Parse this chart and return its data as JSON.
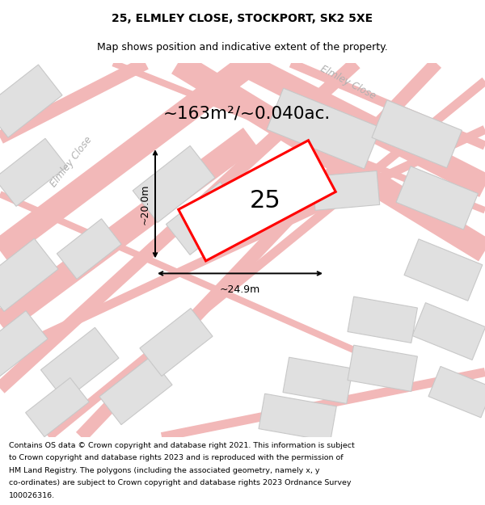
{
  "title": "25, ELMLEY CLOSE, STOCKPORT, SK2 5XE",
  "subtitle": "Map shows position and indicative extent of the property.",
  "area_text": "~163m²/~0.040ac.",
  "label_number": "25",
  "dim_width": "~24.9m",
  "dim_height": "~20.0m",
  "road_label1": "Elmley Close",
  "road_label2": "Elmley Close",
  "footer_lines": [
    "Contains OS data © Crown copyright and database right 2021. This information is subject",
    "to Crown copyright and database rights 2023 and is reproduced with the permission of",
    "HM Land Registry. The polygons (including the associated geometry, namely x, y",
    "co-ordinates) are subject to Crown copyright and database rights 2023 Ordnance Survey",
    "100026316."
  ],
  "bg_color": "#f2f2f2",
  "building_color": "#e0e0e0",
  "building_edge": "#c8c8c8",
  "road_color": "#f2b8b8",
  "highlight_color": "#ff0000"
}
